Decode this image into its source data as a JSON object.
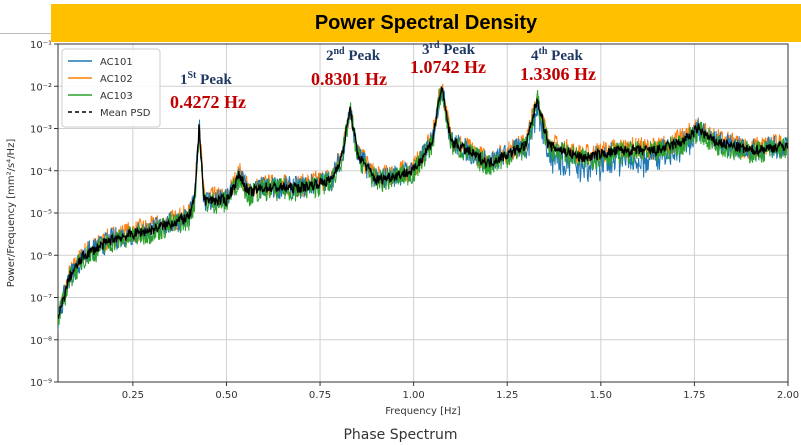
{
  "slide": {
    "title": "Power Spectral Density",
    "footer": "Phase Spectrum"
  },
  "annotations": [
    {
      "label": "1",
      "sup": "St",
      "rest": " Peak",
      "value": "0.4272 Hz"
    },
    {
      "label": "2",
      "sup": "nd",
      "rest": " Peak",
      "value": "0.8301 Hz"
    },
    {
      "label": "3",
      "sup": "rd",
      "rest": " Peak",
      "value": "1.0742 Hz"
    },
    {
      "label": "4",
      "sup": "th",
      "rest": " Peak",
      "value": "1.3306 Hz"
    }
  ],
  "chart_data": {
    "type": "line",
    "title": "",
    "xlabel": "Frequency [Hz]",
    "ylabel": "Power/Frequency [mm²/s⁴/Hz]",
    "xlim": [
      0.05,
      2.0
    ],
    "ylim": [
      1e-09,
      0.1
    ],
    "yscale": "log",
    "grid": true,
    "legend": "top-left",
    "xticks": [
      "0.25",
      "0.50",
      "0.75",
      "1.00",
      "1.25",
      "1.50",
      "1.75",
      "2.00"
    ],
    "xtick_values": [
      0.25,
      0.5,
      0.75,
      1.0,
      1.25,
      1.5,
      1.75,
      2.0
    ],
    "yticks": [
      "10⁻⁹",
      "10⁻⁸",
      "10⁻⁷",
      "10⁻⁶",
      "10⁻⁵",
      "10⁻⁴",
      "10⁻³",
      "10⁻²",
      "10⁻¹"
    ],
    "ytick_exponents": [
      -9,
      -8,
      -7,
      -6,
      -5,
      -4,
      -3,
      -2,
      -1
    ],
    "peaks_hz": [
      0.4272,
      0.8301,
      1.0742,
      1.3306
    ],
    "mean_psd_approx": [
      [
        0.05,
        3e-08
      ],
      [
        0.08,
        3e-07
      ],
      [
        0.12,
        1e-06
      ],
      [
        0.2,
        2.5e-06
      ],
      [
        0.3,
        4e-06
      ],
      [
        0.4,
        8e-06
      ],
      [
        0.415,
        2e-05
      ],
      [
        0.4272,
        0.0012
      ],
      [
        0.44,
        2e-05
      ],
      [
        0.5,
        2e-05
      ],
      [
        0.535,
        8e-05
      ],
      [
        0.56,
        3e-05
      ],
      [
        0.6,
        4e-05
      ],
      [
        0.7,
        4e-05
      ],
      [
        0.78,
        6e-05
      ],
      [
        0.81,
        0.00025
      ],
      [
        0.8301,
        0.003
      ],
      [
        0.85,
        0.00025
      ],
      [
        0.9,
        6e-05
      ],
      [
        1.0,
        0.0001
      ],
      [
        1.05,
        0.0005
      ],
      [
        1.0742,
        0.01
      ],
      [
        1.1,
        0.0005
      ],
      [
        1.2,
        0.00015
      ],
      [
        1.3,
        0.0004
      ],
      [
        1.3306,
        0.005
      ],
      [
        1.36,
        0.0004
      ],
      [
        1.45,
        0.0002
      ],
      [
        1.55,
        0.0003
      ],
      [
        1.65,
        0.0003
      ],
      [
        1.72,
        0.0005
      ],
      [
        1.76,
        0.001
      ],
      [
        1.8,
        0.0005
      ],
      [
        1.9,
        0.0003
      ],
      [
        2.0,
        0.0004
      ]
    ],
    "series": [
      {
        "name": "AC101",
        "color": "#1f77b4",
        "style": "solid",
        "offset_decades": 0.0
      },
      {
        "name": "AC102",
        "color": "#ff7f0e",
        "style": "solid",
        "offset_decades": 0.05
      },
      {
        "name": "AC103",
        "color": "#2ca02c",
        "style": "solid",
        "offset_decades": -0.05
      },
      {
        "name": "Mean PSD",
        "color": "#000000",
        "style": "dashed",
        "offset_decades": 0.0
      }
    ]
  }
}
